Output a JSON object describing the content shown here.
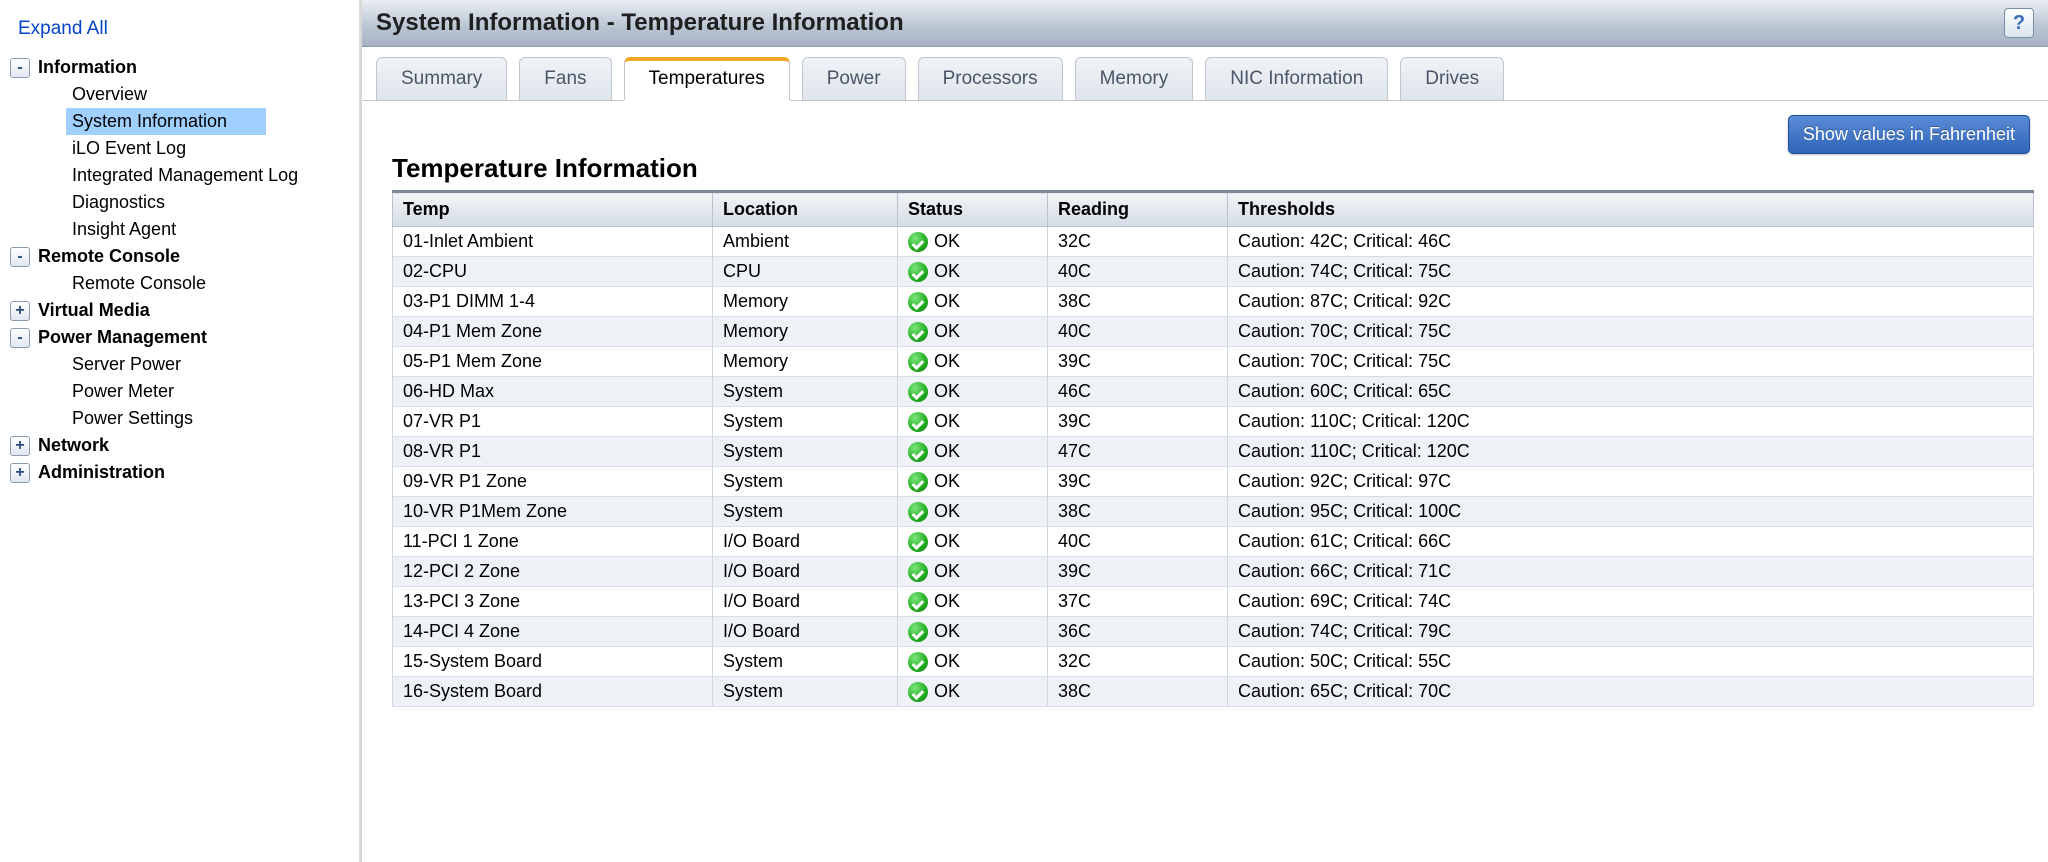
{
  "sidebar": {
    "expand_all": "Expand All",
    "groups": [
      {
        "label": "Information",
        "expanded": true,
        "children": [
          {
            "label": "Overview"
          },
          {
            "label": "System Information",
            "selected": true
          },
          {
            "label": "iLO Event Log"
          },
          {
            "label": "Integrated Management Log"
          },
          {
            "label": "Diagnostics"
          },
          {
            "label": "Insight Agent"
          }
        ]
      },
      {
        "label": "Remote Console",
        "expanded": true,
        "children": [
          {
            "label": "Remote Console"
          }
        ]
      },
      {
        "label": "Virtual Media",
        "expanded": false,
        "children": []
      },
      {
        "label": "Power Management",
        "expanded": true,
        "children": [
          {
            "label": "Server Power"
          },
          {
            "label": "Power Meter"
          },
          {
            "label": "Power Settings"
          }
        ]
      },
      {
        "label": "Network",
        "expanded": false,
        "children": []
      },
      {
        "label": "Administration",
        "expanded": false,
        "children": []
      }
    ]
  },
  "header": {
    "title": "System Information - Temperature Information",
    "help": "?"
  },
  "tabs": [
    {
      "label": "Summary"
    },
    {
      "label": "Fans"
    },
    {
      "label": "Temperatures",
      "active": true
    },
    {
      "label": "Power"
    },
    {
      "label": "Processors"
    },
    {
      "label": "Memory"
    },
    {
      "label": "NIC Information"
    },
    {
      "label": "Drives"
    }
  ],
  "unit_button": "Show values in Fahrenheit",
  "section_title": "Temperature Information",
  "table": {
    "columns": [
      "Temp",
      "Location",
      "Status",
      "Reading",
      "Thresholds"
    ],
    "status_ok": "OK",
    "rows": [
      {
        "temp": "01-Inlet Ambient",
        "location": "Ambient",
        "reading": "32C",
        "thresholds": "Caution: 42C; Critical: 46C"
      },
      {
        "temp": "02-CPU",
        "location": "CPU",
        "reading": "40C",
        "thresholds": "Caution: 74C; Critical: 75C"
      },
      {
        "temp": "03-P1 DIMM 1-4",
        "location": "Memory",
        "reading": "38C",
        "thresholds": "Caution: 87C; Critical: 92C"
      },
      {
        "temp": "04-P1 Mem Zone",
        "location": "Memory",
        "reading": "40C",
        "thresholds": "Caution: 70C; Critical: 75C"
      },
      {
        "temp": "05-P1 Mem Zone",
        "location": "Memory",
        "reading": "39C",
        "thresholds": "Caution: 70C; Critical: 75C"
      },
      {
        "temp": "06-HD Max",
        "location": "System",
        "reading": "46C",
        "thresholds": "Caution: 60C; Critical: 65C"
      },
      {
        "temp": "07-VR P1",
        "location": "System",
        "reading": "39C",
        "thresholds": "Caution: 110C; Critical: 120C"
      },
      {
        "temp": "08-VR P1",
        "location": "System",
        "reading": "47C",
        "thresholds": "Caution: 110C; Critical: 120C"
      },
      {
        "temp": "09-VR P1 Zone",
        "location": "System",
        "reading": "39C",
        "thresholds": "Caution: 92C; Critical: 97C"
      },
      {
        "temp": "10-VR P1Mem Zone",
        "location": "System",
        "reading": "38C",
        "thresholds": "Caution: 95C; Critical: 100C"
      },
      {
        "temp": "11-PCI 1 Zone",
        "location": "I/O Board",
        "reading": "40C",
        "thresholds": "Caution: 61C; Critical: 66C"
      },
      {
        "temp": "12-PCI 2 Zone",
        "location": "I/O Board",
        "reading": "39C",
        "thresholds": "Caution: 66C; Critical: 71C"
      },
      {
        "temp": "13-PCI 3 Zone",
        "location": "I/O Board",
        "reading": "37C",
        "thresholds": "Caution: 69C; Critical: 74C"
      },
      {
        "temp": "14-PCI 4 Zone",
        "location": "I/O Board",
        "reading": "36C",
        "thresholds": "Caution: 74C; Critical: 79C"
      },
      {
        "temp": "15-System Board",
        "location": "System",
        "reading": "32C",
        "thresholds": "Caution: 50C; Critical: 55C"
      },
      {
        "temp": "16-System Board",
        "location": "System",
        "reading": "38C",
        "thresholds": "Caution: 65C; Critical: 70C"
      }
    ]
  }
}
